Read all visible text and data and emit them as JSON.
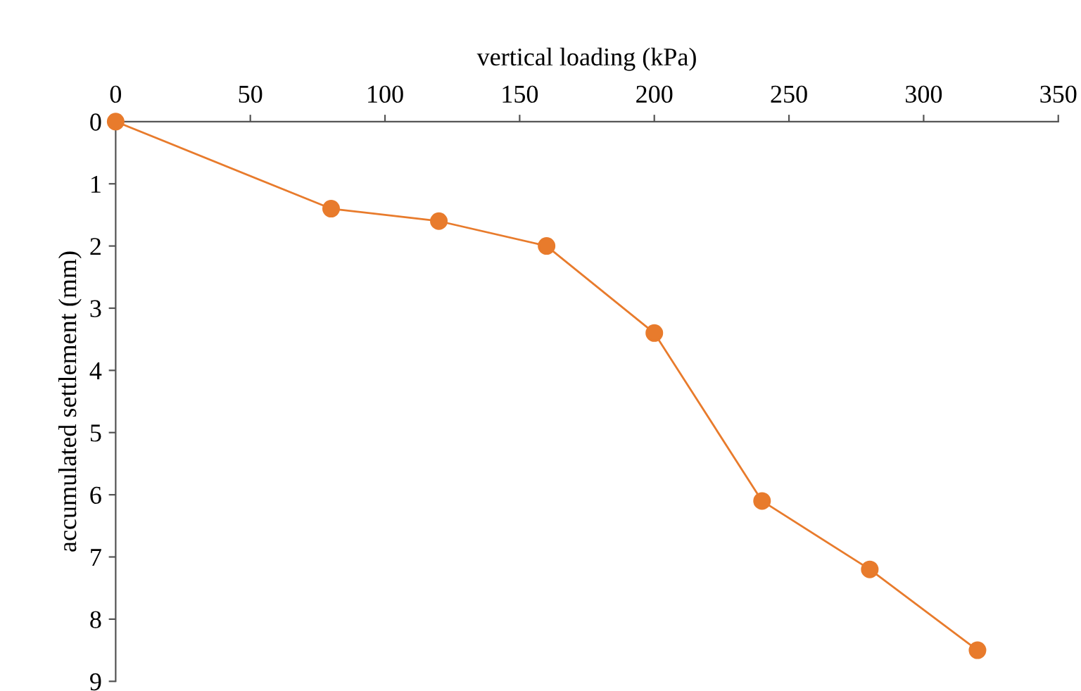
{
  "chart_data": {
    "type": "line",
    "xlabel": "vertical loading (kPa)",
    "ylabel": "accumulated settlement (mm)",
    "x": [
      0,
      80,
      120,
      160,
      200,
      240,
      280,
      320
    ],
    "series": [
      {
        "color": "#e87b2c",
        "values": [
          0,
          1.4,
          1.6,
          2.0,
          3.4,
          6.1,
          7.2,
          8.5
        ]
      }
    ],
    "xlim": [
      0,
      350
    ],
    "xticks": [
      0,
      50,
      100,
      150,
      200,
      250,
      300,
      350
    ],
    "ylim": [
      9,
      0
    ],
    "yticks": [
      0,
      1,
      2,
      3,
      4,
      5,
      6,
      7,
      8,
      9
    ],
    "grid": false,
    "legend": false,
    "marker": "circle",
    "line_style": "solid"
  }
}
